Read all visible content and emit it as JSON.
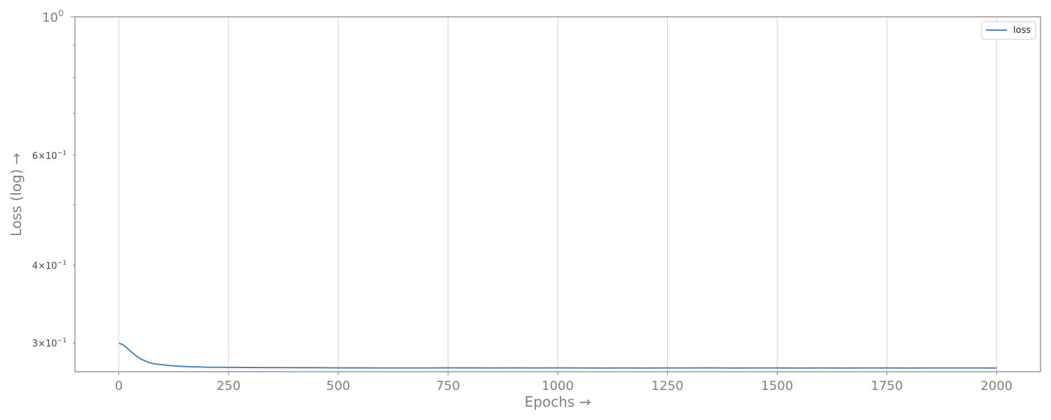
{
  "chart_data": {
    "type": "line",
    "xlabel": "Epochs →",
    "ylabel": "Loss (log) →",
    "xscale": "linear",
    "yscale": "log",
    "xlim": [
      -100,
      2100
    ],
    "ylim": [
      0.27,
      1.0
    ],
    "x_ticks": [
      0,
      250,
      500,
      750,
      1000,
      1250,
      1500,
      1750,
      2000
    ],
    "x_tick_labels": [
      "0",
      "250",
      "500",
      "750",
      "1000",
      "1250",
      "1500",
      "1750",
      "2000"
    ],
    "y_ticks_major": [
      1.0
    ],
    "y_tick_labels_major": [
      "10^0"
    ],
    "y_ticks_minor_labeled": [
      0.3,
      0.4,
      0.6
    ],
    "y_tick_labels_minor": [
      "3×10^-1",
      "4×10^-1",
      "6×10^-1"
    ],
    "y_ticks_minor_unlabeled": [
      0.5,
      0.7,
      0.8,
      0.9
    ],
    "grid": "vertical",
    "legend": "top-right",
    "series": [
      {
        "name": "loss",
        "color": "#4a86c5",
        "x": [
          0,
          10,
          20,
          30,
          40,
          50,
          60,
          70,
          80,
          90,
          100,
          120,
          140,
          160,
          180,
          200,
          250,
          300,
          350,
          400,
          450,
          500,
          550,
          600,
          650,
          700,
          750,
          800,
          850,
          900,
          950,
          1000,
          1050,
          1100,
          1150,
          1200,
          1250,
          1300,
          1350,
          1400,
          1450,
          1500,
          1550,
          1600,
          1650,
          1700,
          1750,
          1800,
          1850,
          1900,
          1950,
          2000
        ],
        "y": [
          0.3,
          0.298,
          0.294,
          0.29,
          0.286,
          0.283,
          0.281,
          0.279,
          0.278,
          0.2775,
          0.277,
          0.276,
          0.2755,
          0.275,
          0.2748,
          0.2745,
          0.2743,
          0.2742,
          0.2741,
          0.274,
          0.274,
          0.2739,
          0.2739,
          0.2738,
          0.2738,
          0.2738,
          0.2739,
          0.2739,
          0.2738,
          0.2739,
          0.2738,
          0.2739,
          0.2738,
          0.2737,
          0.2738,
          0.2737,
          0.2738,
          0.2738,
          0.2739,
          0.2737,
          0.2738,
          0.2738,
          0.2737,
          0.2738,
          0.2737,
          0.2738,
          0.2738,
          0.2737,
          0.2738,
          0.2738,
          0.2738,
          0.2737
        ]
      }
    ]
  }
}
